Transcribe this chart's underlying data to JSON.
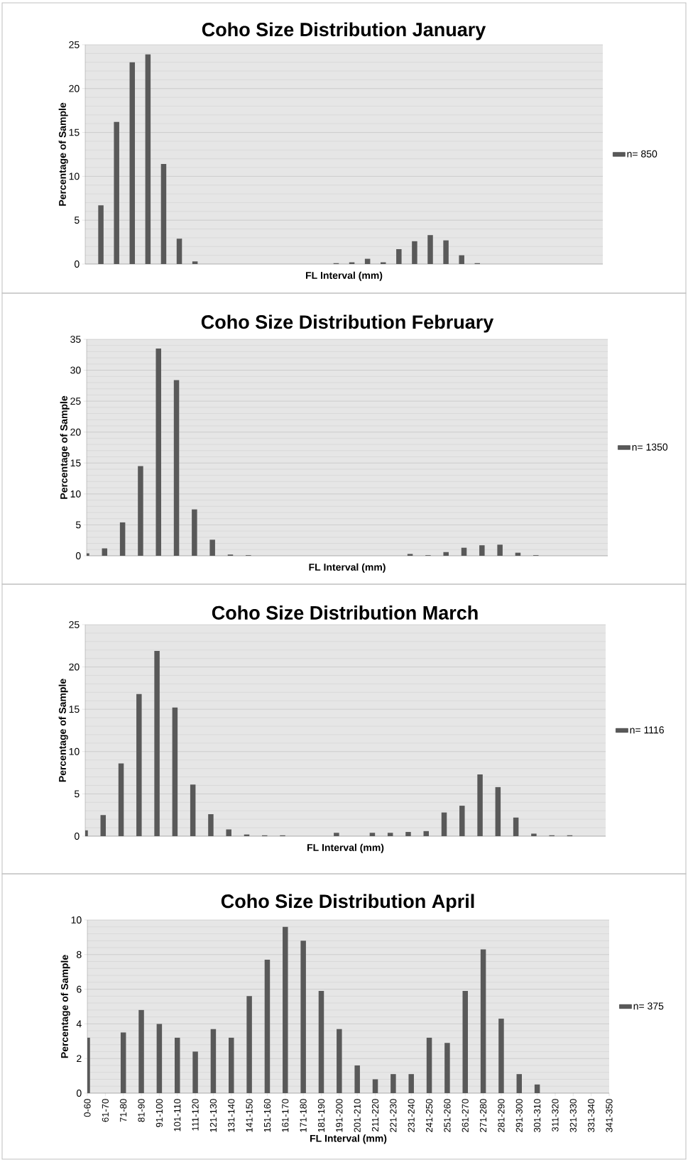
{
  "chart_data": [
    {
      "type": "bar",
      "title": "Coho Size Distribution January",
      "xlabel": "FL Interval (mm)",
      "ylabel": "Percentage of Sample",
      "categories": [
        null,
        null,
        null,
        null,
        null,
        null,
        null,
        null,
        null,
        null,
        null,
        null,
        null,
        null,
        null,
        null,
        null,
        null,
        null,
        null,
        null,
        null,
        null,
        null,
        null,
        null,
        null,
        null,
        null,
        null,
        null,
        null,
        null,
        null
      ],
      "series": [
        {
          "name": "n= 850",
          "color": "#595959",
          "values": [
            0,
            6.7,
            16.2,
            23.0,
            23.9,
            11.4,
            2.9,
            0.3,
            0,
            0,
            0,
            0,
            0,
            0,
            0,
            0,
            0.1,
            0.2,
            0.6,
            0.2,
            1.7,
            2.6,
            3.3,
            2.7,
            1.0,
            0.1,
            0,
            0,
            0,
            0,
            0,
            0,
            0,
            0
          ]
        }
      ],
      "ylim": [
        0,
        25
      ],
      "yticks": [
        0,
        5,
        10,
        15,
        20,
        25
      ],
      "grid": "y",
      "legend": "right"
    },
    {
      "type": "bar",
      "title": "Coho Size Distribution February",
      "xlabel": "FL Interval (mm)",
      "ylabel": "Percentage of Sample",
      "categories": [
        null,
        null,
        null,
        null,
        null,
        null,
        null,
        null,
        null,
        null,
        null,
        null,
        null,
        null,
        null,
        null,
        null,
        null,
        null,
        null,
        null,
        null,
        null,
        null,
        null,
        null,
        null,
        null,
        null,
        null
      ],
      "series": [
        {
          "name": "n= 1350",
          "color": "#595959",
          "values": [
            0.4,
            1.2,
            5.4,
            14.5,
            33.5,
            28.4,
            7.5,
            2.6,
            0.2,
            0.1,
            0,
            0,
            0,
            0,
            0,
            0,
            0,
            0,
            0.3,
            0.1,
            0.6,
            1.3,
            1.7,
            1.8,
            0.5,
            0.1,
            0,
            0,
            0,
            0
          ]
        }
      ],
      "ylim": [
        0,
        35
      ],
      "yticks": [
        0,
        5,
        10,
        15,
        20,
        25,
        30,
        35
      ],
      "grid": "y",
      "legend": "right"
    },
    {
      "type": "bar",
      "title": "Coho Size Distribution March",
      "xlabel": "FL Interval (mm)",
      "ylabel": "Percentage of Sample",
      "categories": [
        null,
        null,
        null,
        null,
        null,
        null,
        null,
        null,
        null,
        null,
        null,
        null,
        null,
        null,
        null,
        null,
        null,
        null,
        null,
        null,
        null,
        null,
        null,
        null,
        null,
        null,
        null,
        null,
        null,
        null
      ],
      "series": [
        {
          "name": "n= 1116",
          "color": "#595959",
          "values": [
            0.7,
            2.5,
            8.6,
            16.8,
            21.9,
            15.2,
            6.1,
            2.6,
            0.8,
            0.2,
            0.1,
            0.1,
            0,
            0,
            0.4,
            0,
            0.4,
            0.4,
            0.5,
            0.6,
            2.8,
            3.6,
            7.3,
            5.8,
            2.2,
            0.3,
            0.1,
            0.1,
            0,
            0
          ]
        }
      ],
      "ylim": [
        0,
        25
      ],
      "yticks": [
        0,
        5,
        10,
        15,
        20,
        25
      ],
      "grid": "y",
      "legend": "right"
    },
    {
      "type": "bar",
      "title": "Coho Size Distribution April",
      "xlabel": "FL Interval (mm)",
      "ylabel": "Percentage of Sample",
      "categories": [
        "0-60",
        "61-70",
        "71-80",
        "81-90",
        "91-100",
        "101-110",
        "111-120",
        "121-130",
        "131-140",
        "141-150",
        "151-160",
        "161-170",
        "171-180",
        "181-190",
        "191-200",
        "201-210",
        "211-220",
        "221-230",
        "231-240",
        "241-250",
        "251-260",
        "261-270",
        "271-280",
        "281-290",
        "291-300",
        "301-310",
        "311-320",
        "321-330",
        "331-340",
        "341-350"
      ],
      "series": [
        {
          "name": "n= 375",
          "color": "#595959",
          "values": [
            3.2,
            0,
            3.5,
            4.8,
            4.0,
            3.2,
            2.4,
            3.7,
            3.2,
            5.6,
            7.7,
            9.6,
            8.8,
            5.9,
            3.7,
            1.6,
            0.8,
            1.1,
            1.1,
            3.2,
            2.9,
            5.9,
            8.3,
            4.3,
            1.1,
            0.5,
            0,
            0,
            0,
            0
          ]
        }
      ],
      "ylim": [
        0,
        10
      ],
      "yticks": [
        0,
        2,
        4,
        6,
        8,
        10
      ],
      "grid": "y",
      "legend": "right"
    }
  ]
}
